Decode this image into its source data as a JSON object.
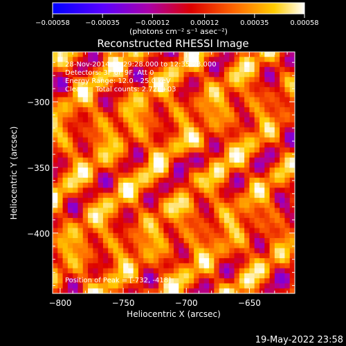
{
  "chart_data": {
    "type": "heatmap",
    "title": "Reconstructed RHESSI Image",
    "xlabel": "Heliocentric X (arcsec)",
    "ylabel": "Heliocentric Y (arcsec)",
    "xlim": [
      -806,
      -614
    ],
    "ylim": [
      -446,
      -262
    ],
    "x_ticks": [
      -800,
      -750,
      -700,
      -650
    ],
    "x_tick_labels": [
      "−800",
      "−750",
      "−700",
      "−650"
    ],
    "y_ticks": [
      -300,
      -350,
      -400
    ],
    "y_tick_labels": [
      "−300",
      "−350",
      "−400"
    ],
    "colorbar": {
      "range": [
        -0.00058,
        0.00058
      ],
      "ticks": [
        -0.00058,
        -0.00035,
        -0.00012,
        0.00012,
        0.00035,
        0.00058
      ],
      "tick_labels": [
        "−0.00058",
        "−0.00035",
        "−0.00012",
        "0.00012",
        "0.00035",
        "0.00058"
      ],
      "unit_label": "(photons cm⁻² s⁻¹ asec⁻²)",
      "colormap": [
        "#0000ff",
        "#5a00ff",
        "#aa00aa",
        "#dd0000",
        "#ff6600",
        "#ffcc00",
        "#ffffff"
      ]
    },
    "annotations": [
      "28-Nov-2014 12:29:28.000 to 12:35:28.000",
      "Detectors: 3F 6F 9F, Att 0",
      "Energy Range: 12.0 - 25.0 keV",
      "Clean     Total counts: 2.72E+03"
    ],
    "peak_label": "Position of Peak = [-732, -418]",
    "peak_position": [
      -732,
      -418
    ],
    "grid": false
  },
  "footer": {
    "timestamp": "19-May-2022 23:58"
  }
}
